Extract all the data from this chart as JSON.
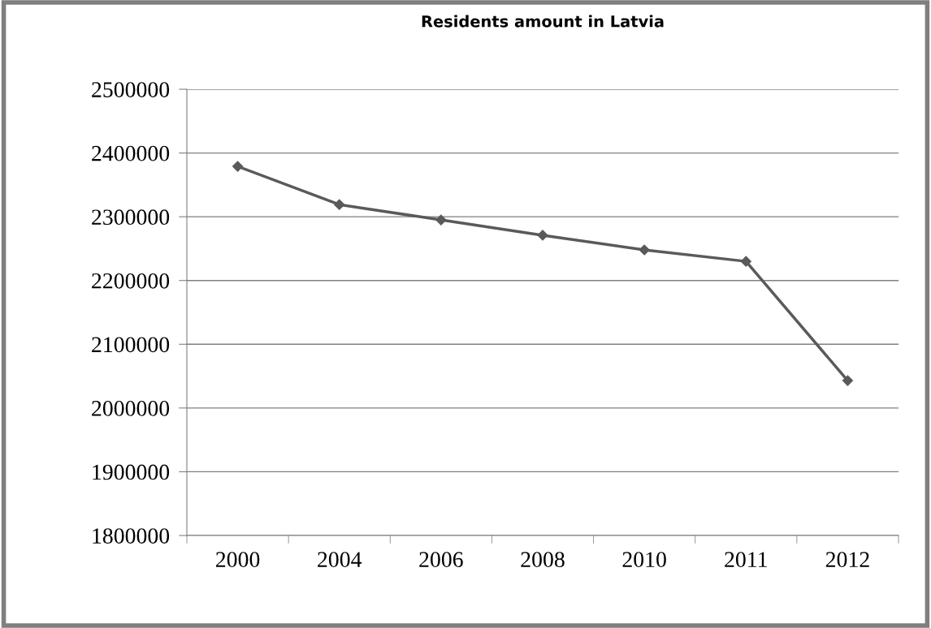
{
  "chart_data": {
    "type": "line",
    "title": "Residents amount in Latvia",
    "categories": [
      "2000",
      "2004",
      "2006",
      "2008",
      "2010",
      "2011",
      "2012"
    ],
    "series": [
      {
        "color": "#5a5a5a",
        "values": [
          2379000,
          2319000,
          2295000,
          2271000,
          2248000,
          2230000,
          2043000
        ]
      }
    ],
    "ylim": [
      1800000,
      2500000
    ],
    "yticks": [
      1800000,
      1900000,
      2000000,
      2100000,
      2200000,
      2300000,
      2400000,
      2500000
    ],
    "grid": "y",
    "legend": false,
    "marker": "diamond",
    "line_style": "solid"
  }
}
